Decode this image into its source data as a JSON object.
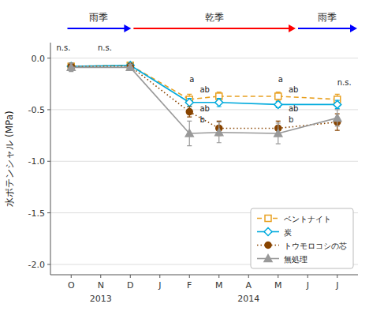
{
  "chart_data": {
    "type": "line",
    "y_label": "水ポテンシャル (MPa)",
    "categories": [
      "O",
      "N",
      "D",
      "J",
      "F",
      "M",
      "A",
      "M",
      "J",
      "J"
    ],
    "series": [
      {
        "name": "ベントナイト",
        "color": "#E8A020",
        "marker": "square",
        "line_style": "dashed",
        "values": [
          -0.08,
          null,
          -0.07,
          null,
          -0.4,
          -0.37,
          null,
          -0.37,
          null,
          -0.4
        ],
        "errors": [
          0.03,
          null,
          0.02,
          null,
          0.05,
          0.04,
          null,
          0.04,
          null,
          0.05
        ]
      },
      {
        "name": "炭",
        "color": "#00AADD",
        "marker": "diamond",
        "line_style": "solid",
        "values": [
          -0.08,
          null,
          -0.07,
          null,
          -0.43,
          -0.43,
          null,
          -0.45,
          null,
          -0.45
        ],
        "errors": [
          0.03,
          null,
          0.02,
          null,
          0.04,
          0.04,
          null,
          0.03,
          null,
          0.04
        ]
      },
      {
        "name": "トウモロコシの芯",
        "color": "#884400",
        "marker": "circle",
        "line_style": "dotted",
        "values": [
          -0.08,
          null,
          -0.08,
          null,
          -0.52,
          -0.68,
          null,
          -0.68,
          null,
          -0.62
        ],
        "errors": [
          0.03,
          null,
          0.02,
          null,
          0.05,
          0.07,
          null,
          0.07,
          null,
          0.08
        ]
      },
      {
        "name": "無処理",
        "color": "#999999",
        "marker": "triangle",
        "line_style": "solid",
        "values": [
          -0.09,
          null,
          -0.09,
          null,
          -0.73,
          -0.72,
          null,
          -0.73,
          null,
          -0.58
        ],
        "errors": [
          0.04,
          null,
          0.03,
          null,
          0.12,
          0.1,
          null,
          0.1,
          null,
          0.08
        ]
      }
    ],
    "ylim": [
      -2.1,
      0.15
    ],
    "yticks": [
      {
        "value": 0.0,
        "label": "0.0"
      },
      -0.5,
      {
        "value": -1.0,
        "label": "-1.0"
      },
      -1.5,
      {
        "value": -2.0,
        "label": "-2.0"
      }
    ],
    "grid": true,
    "legend": "lower right",
    "annotations": [
      {
        "text": "n.s.",
        "x": -0.5,
        "y": 0.06
      },
      {
        "text": "n.s.",
        "x": 0.9,
        "y": 0.06
      },
      {
        "text": "a",
        "x": 4.0,
        "y": -0.25
      },
      {
        "text": "ab",
        "x": 4.35,
        "y": -0.35
      },
      {
        "text": "ab",
        "x": 4.35,
        "y": -0.53
      },
      {
        "text": "b",
        "x": 4.35,
        "y": -0.64
      },
      {
        "text": "a",
        "x": 7.0,
        "y": -0.25
      },
      {
        "text": "ab",
        "x": 7.35,
        "y": -0.35
      },
      {
        "text": "ab",
        "x": 7.35,
        "y": -0.53
      },
      {
        "text": "b",
        "x": 7.35,
        "y": -0.64
      },
      {
        "text": "n.s.",
        "x": 9.0,
        "y": -0.28
      },
      {
        "text": "2013",
        "x": 1.0
      },
      {
        "text": "2014",
        "x": 6.0
      },
      {
        "text": "雨季",
        "color": "blue"
      },
      {
        "text": "乾季",
        "color": "red"
      },
      {
        "text": "雨季",
        "color": "blue"
      }
    ]
  }
}
